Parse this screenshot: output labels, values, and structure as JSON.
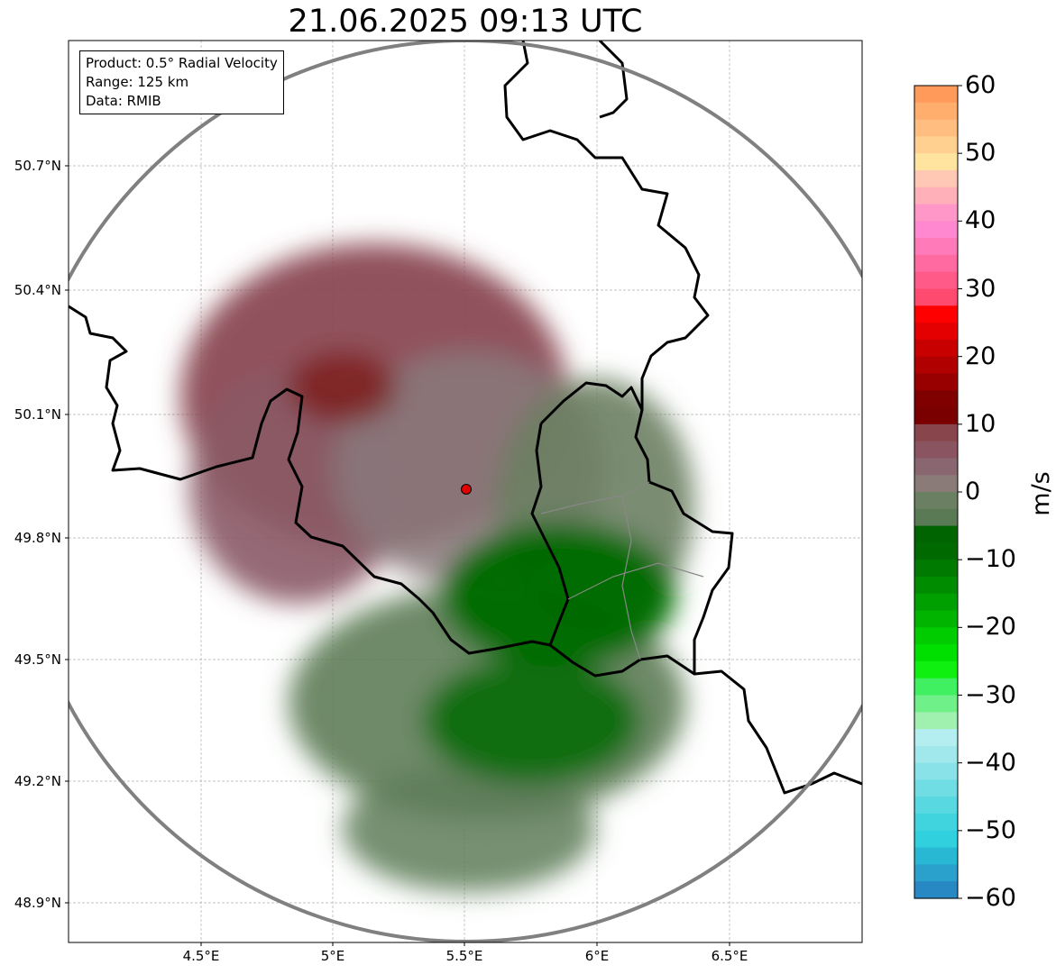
{
  "title": "21.06.2025 09:13 UTC",
  "info": {
    "product": "Product: 0.5° Radial Velocity",
    "range": "Range: 125 km",
    "data": "Data: RMIB"
  },
  "axes": {
    "lat_labels": [
      "50.7°N",
      "50.4°N",
      "50.1°N",
      "49.8°N",
      "49.5°N",
      "49.2°N",
      "48.9°N"
    ],
    "lon_labels": [
      "4.5°E",
      "5°E",
      "5.5°E",
      "6°E",
      "6.5°E"
    ]
  },
  "colorbar": {
    "unit": "m/s",
    "min": -60,
    "max": 60,
    "ticks": [
      "60",
      "50",
      "40",
      "30",
      "20",
      "10",
      "0",
      "−10",
      "−20",
      "−30",
      "−40",
      "−50",
      "−60"
    ],
    "colors_top_to_bottom": [
      "#ff9a5a",
      "#ffae6e",
      "#ffbe80",
      "#ffd090",
      "#ffe4a0",
      "#ffc8b4",
      "#ffb0b8",
      "#ff98c8",
      "#ff88d0",
      "#ff7ab8",
      "#ff6aa0",
      "#ff5a88",
      "#ff4a70",
      "#ff0000",
      "#e40000",
      "#c80000",
      "#b00000",
      "#980000",
      "#800000",
      "#7a0000",
      "#88454b",
      "#8a5560",
      "#8a6670",
      "#8a7a78",
      "#6b8062",
      "#5a7a55",
      "#006400",
      "#006a00",
      "#007a00",
      "#008c00",
      "#00a000",
      "#00b400",
      "#00cc00",
      "#00e000",
      "#10f010",
      "#40f060",
      "#70f088",
      "#a0f0b0",
      "#b4eef0",
      "#a0e8ec",
      "#88e2e8",
      "#70dce4",
      "#58d8e0",
      "#40d4de",
      "#30d0de",
      "#28b8d4",
      "#2aa0cc",
      "#2888c4"
    ]
  },
  "radar_site": {
    "lon": 5.5,
    "lat": 49.91
  },
  "colors": {
    "range_ring": "#808080",
    "border": "#000000",
    "site_marker": "#e00000",
    "grid": "#aaaaaa"
  }
}
